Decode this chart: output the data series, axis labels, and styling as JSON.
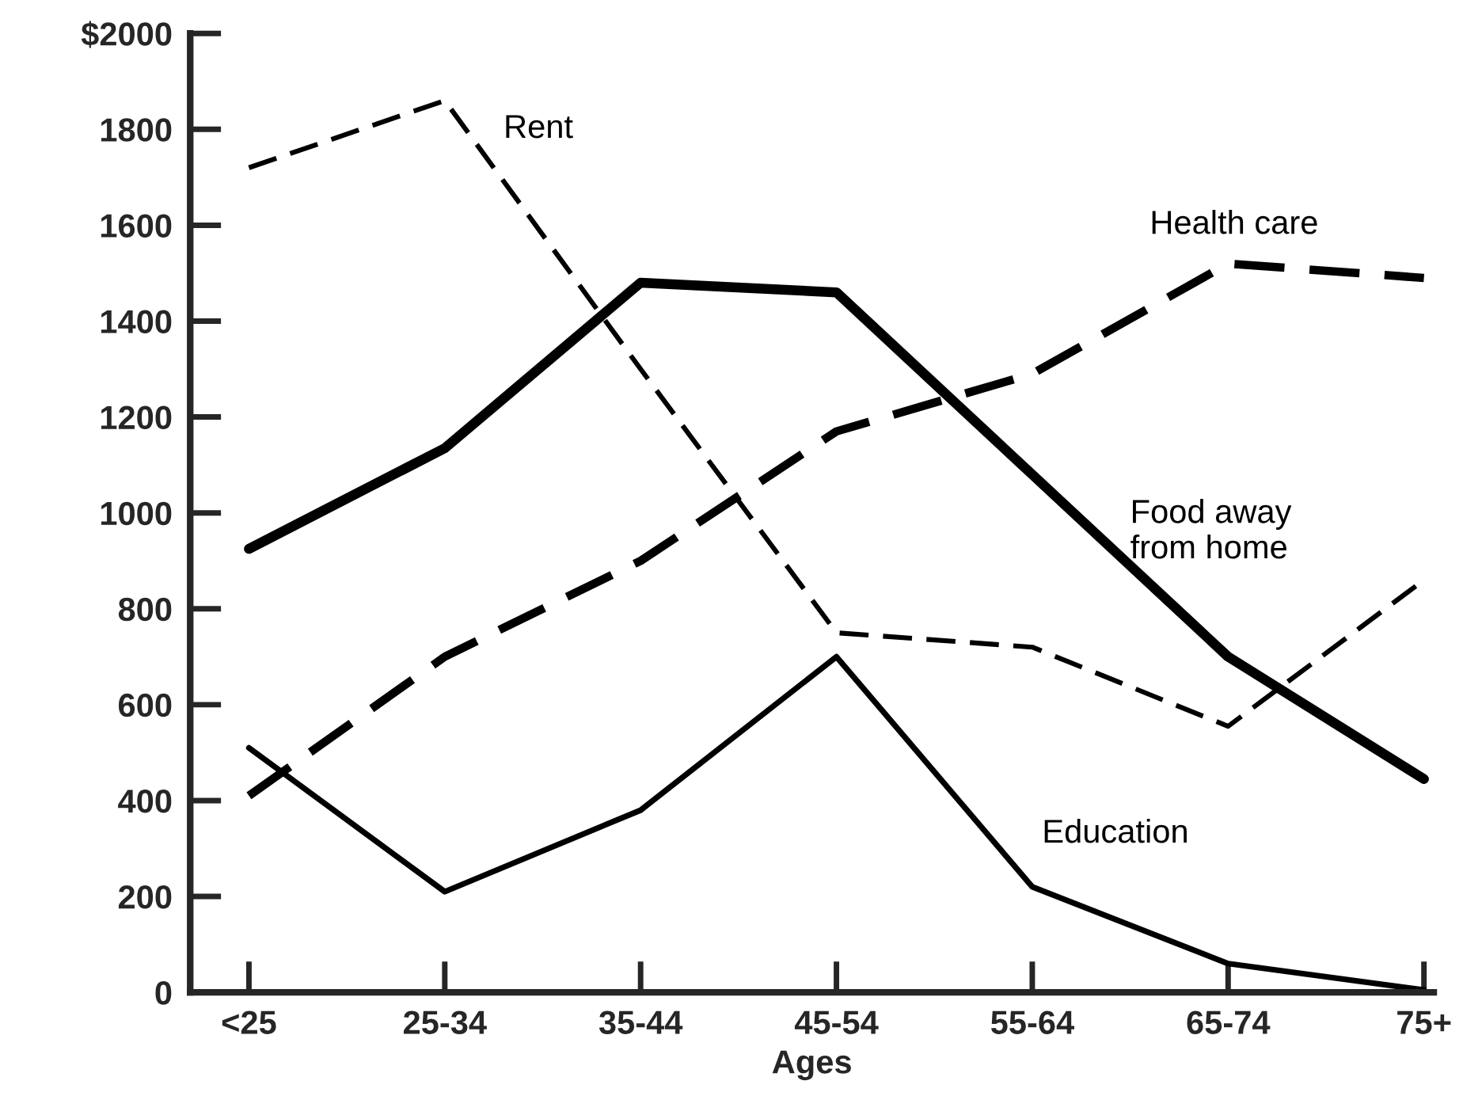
{
  "chart_data": {
    "type": "line",
    "xlabel": "Ages",
    "categories": [
      "<25",
      "25-34",
      "35-44",
      "45-54",
      "55-64",
      "65-74",
      "75+"
    ],
    "series": [
      {
        "name": "Rent",
        "color": "#000000",
        "line_style": "dashed",
        "values": [
          1720,
          1860,
          1300,
          750,
          720,
          555,
          860
        ]
      },
      {
        "name": "Health care",
        "color": "#000000",
        "line_style": "dashed",
        "values": [
          410,
          700,
          900,
          1170,
          1290,
          1520,
          1490
        ]
      },
      {
        "name": "Food away\nfrom home",
        "color": "#000000",
        "line_style": "solid",
        "values": [
          925,
          1135,
          1480,
          1460,
          1080,
          700,
          445
        ]
      },
      {
        "name": "Education",
        "color": "#000000",
        "line_style": "solid",
        "values": [
          510,
          210,
          380,
          700,
          220,
          60,
          5
        ]
      }
    ],
    "ylim": [
      0,
      2000
    ],
    "yticks": [
      0,
      200,
      400,
      600,
      800,
      1000,
      1200,
      1400,
      1600,
      1800,
      {
        "value": 2000,
        "label": "$2000"
      }
    ],
    "grid": false,
    "legend": false,
    "marker": "none"
  }
}
